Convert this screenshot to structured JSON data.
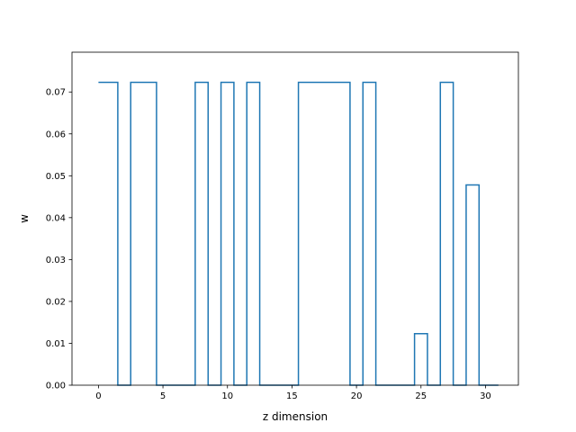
{
  "chart_data": {
    "type": "line",
    "drawstyle": "steps-mid",
    "title": "",
    "xlabel": "z dimension",
    "ylabel": "w",
    "xlim": [
      -2.05,
      32.55
    ],
    "ylim": [
      0.0,
      0.0795
    ],
    "xticks": [
      0,
      5,
      10,
      15,
      20,
      25,
      30
    ],
    "xtick_labels": [
      "0",
      "5",
      "10",
      "15",
      "20",
      "25",
      "30"
    ],
    "yticks": [
      0.0,
      0.01,
      0.02,
      0.03,
      0.04,
      0.05,
      0.06,
      0.07
    ],
    "ytick_labels": [
      "0.00",
      "0.01",
      "0.02",
      "0.03",
      "0.04",
      "0.05",
      "0.06",
      "0.07"
    ],
    "grid": false,
    "line_color": "#1f77b4",
    "series": [
      {
        "x": [
          0,
          1,
          2,
          3,
          4,
          5,
          6,
          7,
          8,
          9,
          10,
          11,
          12,
          13,
          14,
          15,
          16,
          17,
          18,
          19,
          20,
          21,
          22,
          23,
          24,
          25,
          26,
          27,
          28,
          29,
          30,
          31
        ],
        "y": [
          0.0723,
          0.0723,
          0,
          0.0723,
          0.0723,
          0,
          0,
          0,
          0.0723,
          0,
          0.0723,
          0,
          0.0723,
          0,
          0,
          0,
          0.0723,
          0.0723,
          0.0723,
          0.0723,
          0,
          0.0723,
          0,
          0,
          0,
          0.0123,
          0,
          0.0723,
          0,
          0.0478,
          0,
          0
        ]
      }
    ]
  }
}
